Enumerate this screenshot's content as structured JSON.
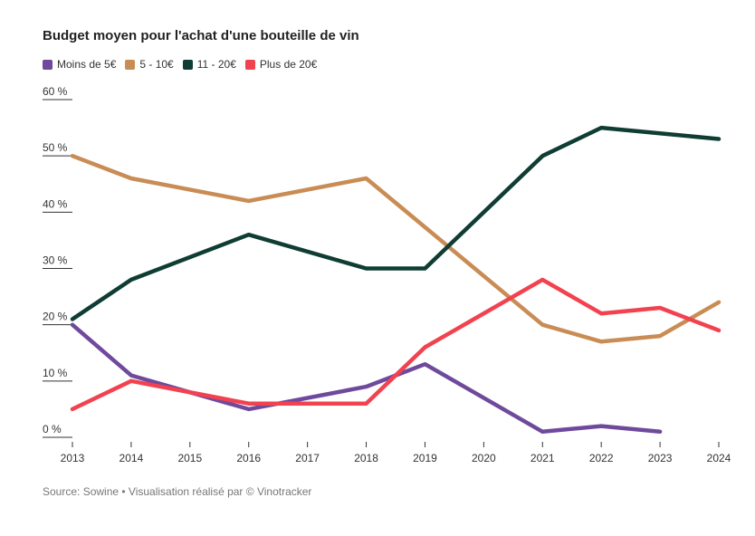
{
  "chart_data": {
    "type": "line",
    "title": "Budget moyen pour l'achat d'une bouteille de vin",
    "x": [
      2013,
      2014,
      2015,
      2016,
      2017,
      2018,
      2019,
      2020,
      2021,
      2022,
      2023,
      2024
    ],
    "x_tick_labels": [
      "2013",
      "2014",
      "2015",
      "2016",
      "2017",
      "2018",
      "2019",
      "2020",
      "2021",
      "2022",
      "2023",
      "2024"
    ],
    "ylim": [
      0,
      60
    ],
    "y_ticks": [
      0,
      10,
      20,
      30,
      40,
      50,
      60
    ],
    "y_tick_labels": [
      "0 %",
      "10 %",
      "20 %",
      "30 %",
      "40 %",
      "50 %",
      "60 %"
    ],
    "grid": false,
    "legend_position": "top-left",
    "series": [
      {
        "name": "Moins de 5€",
        "color": "#6f4a9c",
        "points": [
          [
            2013,
            20
          ],
          [
            2014,
            11
          ],
          [
            2016,
            5
          ],
          [
            2018,
            9
          ],
          [
            2019,
            13
          ],
          [
            2021,
            1
          ],
          [
            2022,
            2
          ],
          [
            2023,
            1
          ]
        ]
      },
      {
        "name": "5 - 10€",
        "color": "#c98c54",
        "points": [
          [
            2013,
            50
          ],
          [
            2014,
            46
          ],
          [
            2016,
            42
          ],
          [
            2018,
            46
          ],
          [
            2021,
            20
          ],
          [
            2022,
            17
          ],
          [
            2023,
            18
          ],
          [
            2024,
            24
          ]
        ]
      },
      {
        "name": "11 - 20€",
        "color": "#0f3d33",
        "points": [
          [
            2013,
            21
          ],
          [
            2014,
            28
          ],
          [
            2016,
            36
          ],
          [
            2018,
            30
          ],
          [
            2019,
            30
          ],
          [
            2021,
            50
          ],
          [
            2022,
            55
          ],
          [
            2024,
            53
          ]
        ]
      },
      {
        "name": "Plus de 20€",
        "color": "#f2424f",
        "points": [
          [
            2013,
            5
          ],
          [
            2014,
            10
          ],
          [
            2016,
            6
          ],
          [
            2018,
            6
          ],
          [
            2019,
            16
          ],
          [
            2021,
            28
          ],
          [
            2022,
            22
          ],
          [
            2023,
            23
          ],
          [
            2024,
            19
          ]
        ]
      }
    ]
  },
  "source": "Source: Sowine • Visualisation réalisé par © Vinotracker"
}
